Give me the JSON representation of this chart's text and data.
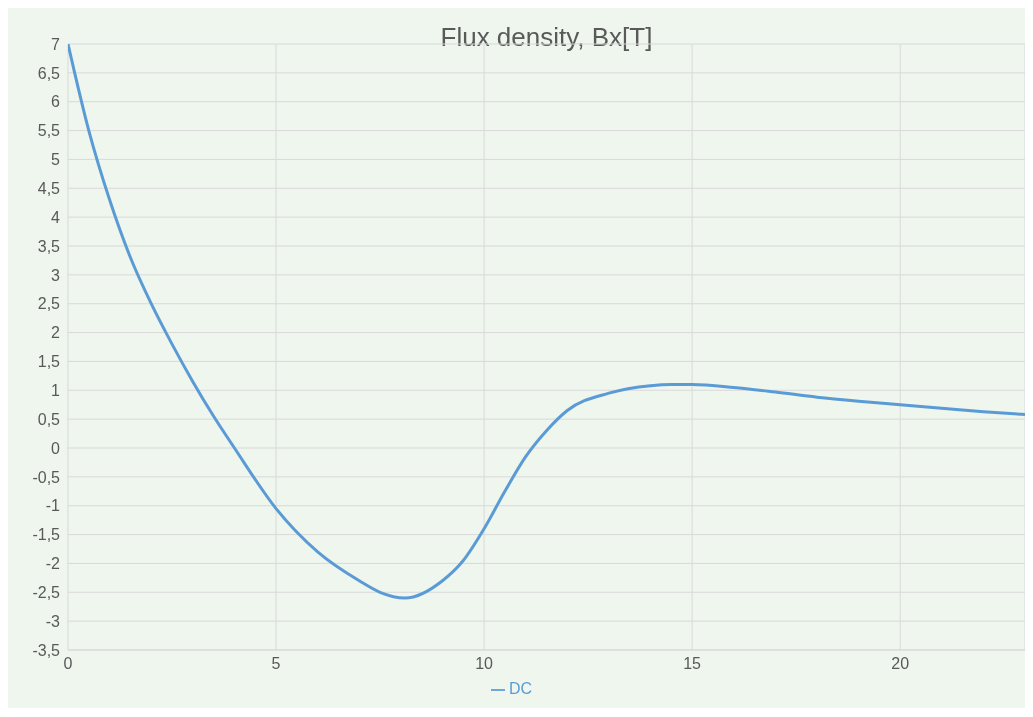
{
  "chart_data": {
    "type": "line",
    "title": "Flux density, Bx[T]",
    "x": [
      0,
      0.5,
      1,
      1.5,
      2,
      2.5,
      3,
      3.5,
      4,
      5,
      6,
      7,
      7.5,
      8.1,
      9,
      9.5,
      10,
      10.5,
      11,
      11.5,
      12,
      13,
      14,
      14.5,
      15,
      16,
      17,
      18,
      19,
      20,
      21,
      22,
      23
    ],
    "series": [
      {
        "name": "DC",
        "color": "#5b9bd5",
        "values": [
          7,
          5.5,
          4.3,
          3.3,
          2.5,
          1.8,
          1.15,
          0.55,
          0.0,
          -1.05,
          -1.8,
          -2.3,
          -2.5,
          -2.6,
          -2.3,
          -1.95,
          -1.4,
          -0.75,
          -0.15,
          0.3,
          0.65,
          0.95,
          1.08,
          1.1,
          1.1,
          1.05,
          0.97,
          0.88,
          0.81,
          0.75,
          0.69,
          0.63,
          0.58
        ]
      }
    ],
    "xlim": [
      0,
      23
    ],
    "xticks": [
      0,
      5,
      10,
      15,
      20
    ],
    "ylim": [
      -3.5,
      7
    ],
    "yticks": [
      {
        "value": -3.5,
        "label": "-3,5"
      },
      -3,
      {
        "value": -2.5,
        "label": "-2,5"
      },
      -2,
      {
        "value": -1.5,
        "label": "-1,5"
      },
      -1,
      {
        "value": -0.5,
        "label": "-0,5"
      },
      0,
      {
        "value": 0.5,
        "label": "0,5"
      },
      1,
      {
        "value": 1.5,
        "label": "1,5"
      },
      2,
      {
        "value": 2.5,
        "label": "2,5"
      },
      3,
      {
        "value": 3.5,
        "label": "3,5"
      },
      4,
      {
        "value": 4.5,
        "label": "4,5"
      },
      5,
      {
        "value": 5.5,
        "label": "5,5"
      },
      6,
      {
        "value": 6.5,
        "label": "6,5"
      },
      7
    ],
    "grid": true,
    "legend": "bottom",
    "marker": "none",
    "line_style": "solid"
  }
}
